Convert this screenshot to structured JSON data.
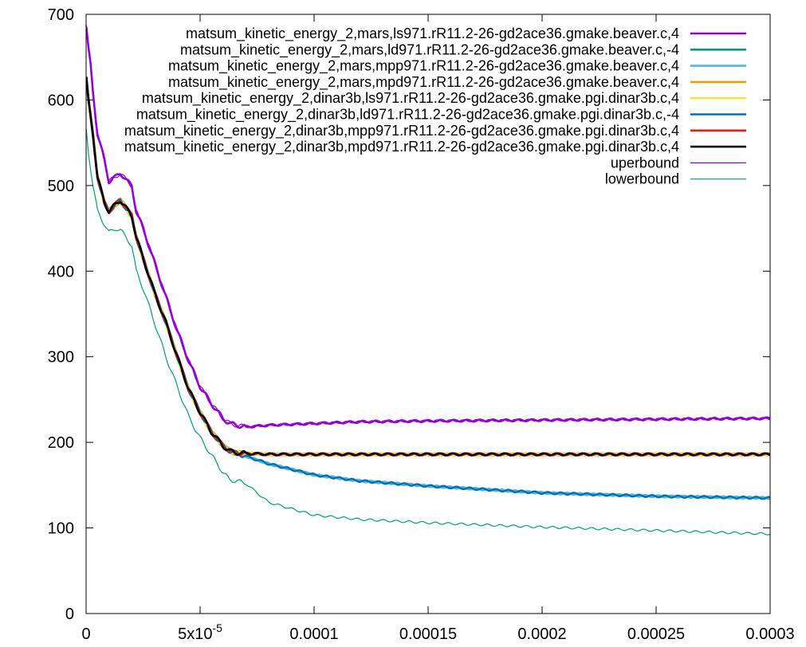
{
  "chart_data": {
    "type": "line",
    "xlim": [
      0,
      0.0003
    ],
    "ylim": [
      0,
      700
    ],
    "x_ticks": [
      {
        "value": 0,
        "label": "0"
      },
      {
        "value": 5e-05,
        "label": "5x10",
        "sup": "-5"
      },
      {
        "value": 0.0001,
        "label": "0.0001"
      },
      {
        "value": 0.00015,
        "label": "0.00015"
      },
      {
        "value": 0.0002,
        "label": "0.0002"
      },
      {
        "value": 0.00025,
        "label": "0.00025"
      },
      {
        "value": 0.0003,
        "label": "0.0003"
      }
    ],
    "y_ticks": [
      {
        "value": 0,
        "label": "0"
      },
      {
        "value": 100,
        "label": "100"
      },
      {
        "value": 200,
        "label": "200"
      },
      {
        "value": 300,
        "label": "300"
      },
      {
        "value": 400,
        "label": "400"
      },
      {
        "value": 500,
        "label": "500"
      },
      {
        "value": 600,
        "label": "600"
      },
      {
        "value": 700,
        "label": "700"
      }
    ],
    "grid": false,
    "legend_position": "top-right",
    "series": [
      {
        "name": "matsum_kinetic_energy_2,mars,ls971.rR11.2-26-gd2ace36.gmake.beaver.c,4",
        "color": "#9400d3",
        "width": "thick",
        "x": [
          1e-07,
          1e-06,
          2e-06,
          3e-06,
          5e-06,
          8e-06,
          1e-05,
          1.3e-05,
          1.5e-05,
          1.8e-05,
          2e-05,
          2.2e-05,
          2.5e-05,
          3e-05,
          3.5e-05,
          4e-05,
          4.5e-05,
          5e-05,
          5.5e-05,
          6e-05,
          6.3e-05,
          6.6e-05,
          7e-05,
          7.5e-05,
          8e-05,
          0.0001,
          0.00012,
          0.00015,
          0.0002,
          0.00025,
          0.0003
        ],
        "y": [
          685,
          660,
          640,
          610,
          560,
          530,
          505,
          510,
          515,
          505,
          500,
          470,
          450,
          410,
          370,
          330,
          295,
          265,
          245,
          228,
          222,
          220,
          218,
          219,
          220,
          222,
          224,
          225,
          226,
          227,
          228
        ]
      },
      {
        "name": "matsum_kinetic_energy_2,mars,ld971.rR11.2-26-gd2ace36.gmake.beaver.c,-4",
        "color": "#009e73",
        "width": "thick",
        "x": [
          1e-07,
          1e-06,
          3e-06,
          5e-06,
          8e-06,
          1e-05,
          1.3e-05,
          1.5e-05,
          1.8e-05,
          2e-05,
          2.2e-05,
          2.5e-05,
          3e-05,
          3.5e-05,
          4e-05,
          4.5e-05,
          5e-05,
          5.5e-05,
          6e-05,
          6.3e-05,
          6.5e-05,
          7e-05,
          8e-05,
          0.0001,
          0.00015,
          0.0002,
          0.00025,
          0.0003
        ],
        "y": [
          625,
          600,
          560,
          510,
          480,
          470,
          478,
          483,
          472,
          465,
          440,
          415,
          375,
          340,
          300,
          262,
          235,
          212,
          196,
          190,
          188,
          187,
          186,
          186,
          186,
          186,
          186,
          186
        ]
      },
      {
        "name": "matsum_kinetic_energy_2,mars,mpp971.rR11.2-26-gd2ace36.gmake.beaver.c,4",
        "color": "#56b4e9",
        "width": "thick",
        "x": [
          1e-07,
          1e-06,
          3e-06,
          5e-06,
          8e-06,
          1e-05,
          1.3e-05,
          1.5e-05,
          1.8e-05,
          2e-05,
          2.2e-05,
          2.5e-05,
          3e-05,
          3.5e-05,
          4e-05,
          4.5e-05,
          5e-05,
          5.5e-05,
          6e-05,
          6.3e-05,
          6.5e-05,
          7e-05,
          8e-05,
          0.0001,
          0.00012,
          0.00015,
          0.0002,
          0.00025,
          0.0003
        ],
        "y": [
          625,
          600,
          560,
          510,
          480,
          470,
          478,
          483,
          472,
          465,
          440,
          415,
          375,
          340,
          300,
          262,
          235,
          212,
          196,
          190,
          188,
          184,
          175,
          162,
          155,
          149,
          141,
          137,
          135
        ]
      },
      {
        "name": "matsum_kinetic_energy_2,mars,mpd971.rR11.2-26-gd2ace36.gmake.beaver.c,4",
        "color": "#e69f00",
        "width": "thick",
        "x": [
          1e-07,
          1e-06,
          3e-06,
          5e-06,
          8e-06,
          1e-05,
          1.3e-05,
          1.5e-05,
          1.8e-05,
          2e-05,
          2.2e-05,
          2.5e-05,
          3e-05,
          3.5e-05,
          4e-05,
          4.5e-05,
          5e-05,
          5.5e-05,
          6e-05,
          6.3e-05,
          6.5e-05,
          7e-05,
          8e-05,
          0.0001,
          0.00015,
          0.0002,
          0.00025,
          0.0003
        ],
        "y": [
          625,
          600,
          560,
          510,
          480,
          470,
          478,
          483,
          472,
          465,
          440,
          415,
          375,
          340,
          300,
          262,
          235,
          212,
          196,
          190,
          188,
          187,
          186,
          186,
          186,
          186,
          186,
          186
        ]
      },
      {
        "name": "matsum_kinetic_energy_2,dinar3b,ls971.rR11.2-26-gd2ace36.gmake.pgi.dinar3b.c,4",
        "color": "#f0e442",
        "width": "thick",
        "x": [
          1e-07,
          1e-06,
          3e-06,
          5e-06,
          8e-06,
          1e-05,
          1.3e-05,
          1.5e-05,
          1.8e-05,
          2e-05,
          2.2e-05,
          2.5e-05,
          3e-05,
          3.5e-05,
          4e-05,
          4.5e-05,
          5e-05,
          5.5e-05,
          6e-05,
          6.3e-05,
          6.5e-05,
          7e-05,
          8e-05,
          0.0001,
          0.00015,
          0.0002,
          0.00025,
          0.0003
        ],
        "y": [
          625,
          600,
          560,
          510,
          480,
          470,
          478,
          483,
          472,
          465,
          440,
          415,
          375,
          340,
          300,
          262,
          235,
          212,
          196,
          190,
          188,
          187,
          186,
          186,
          186,
          186,
          186,
          186
        ]
      },
      {
        "name": "matsum_kinetic_energy_2,dinar3b,ld971.rR11.2-26-gd2ace36.gmake.pgi.dinar3b.c,-4",
        "color": "#0072b2",
        "width": "thick",
        "x": [
          1e-07,
          1e-06,
          3e-06,
          5e-06,
          8e-06,
          1e-05,
          1.3e-05,
          1.5e-05,
          1.8e-05,
          2e-05,
          2.2e-05,
          2.5e-05,
          3e-05,
          3.5e-05,
          4e-05,
          4.5e-05,
          5e-05,
          5.5e-05,
          6e-05,
          6.3e-05,
          6.5e-05,
          7e-05,
          8e-05,
          0.0001,
          0.00012,
          0.00015,
          0.0002,
          0.00025,
          0.0003
        ],
        "y": [
          625,
          600,
          560,
          510,
          480,
          470,
          478,
          483,
          472,
          465,
          440,
          415,
          375,
          340,
          300,
          262,
          235,
          212,
          196,
          190,
          188,
          184,
          175,
          162,
          155,
          149,
          141,
          137,
          135
        ]
      },
      {
        "name": "matsum_kinetic_energy_2,dinar3b,mpp971.rR11.2-26-gd2ace36.gmake.pgi.dinar3b.c,4",
        "color": "#e51e10",
        "width": "thick",
        "x": [
          1e-07,
          1e-06,
          3e-06,
          5e-06,
          8e-06,
          1e-05,
          1.3e-05,
          1.5e-05,
          1.8e-05,
          2e-05,
          2.2e-05,
          2.5e-05,
          3e-05,
          3.5e-05,
          4e-05,
          4.5e-05,
          5e-05,
          5.5e-05,
          6e-05,
          6.3e-05,
          6.5e-05,
          7e-05,
          8e-05,
          0.0001,
          0.00015,
          0.0002,
          0.00025,
          0.0003
        ],
        "y": [
          625,
          600,
          560,
          510,
          480,
          470,
          478,
          483,
          472,
          465,
          440,
          415,
          375,
          340,
          300,
          262,
          235,
          212,
          196,
          190,
          188,
          187,
          186,
          186,
          186,
          186,
          186,
          186
        ]
      },
      {
        "name": "matsum_kinetic_energy_2,dinar3b,mpd971.rR11.2-26-gd2ace36.gmake.pgi.dinar3b.c,4",
        "color": "#000000",
        "width": "thick",
        "x": [
          1e-07,
          1e-06,
          3e-06,
          5e-06,
          8e-06,
          1e-05,
          1.3e-05,
          1.5e-05,
          1.8e-05,
          2e-05,
          2.2e-05,
          2.5e-05,
          3e-05,
          3.5e-05,
          4e-05,
          4.5e-05,
          5e-05,
          5.5e-05,
          6e-05,
          6.3e-05,
          6.5e-05,
          7e-05,
          8e-05,
          0.0001,
          0.00015,
          0.0002,
          0.00025,
          0.0003
        ],
        "y": [
          625,
          600,
          560,
          510,
          480,
          470,
          478,
          483,
          472,
          465,
          440,
          415,
          375,
          340,
          300,
          262,
          235,
          212,
          196,
          190,
          188,
          187,
          186,
          186,
          186,
          186,
          186,
          186
        ]
      },
      {
        "name": "uperbound",
        "color": "#9400d3",
        "width": "thin",
        "x": [
          1e-07,
          1e-06,
          2e-06,
          3e-06,
          5e-06,
          8e-06,
          1e-05,
          1.3e-05,
          1.5e-05,
          1.8e-05,
          2e-05,
          2.2e-05,
          2.5e-05,
          3e-05,
          3.5e-05,
          4e-05,
          4.5e-05,
          5e-05,
          5.5e-05,
          6e-05,
          6.3e-05,
          6.6e-05,
          7e-05,
          7.5e-05,
          8e-05,
          0.0001,
          0.00012,
          0.00015,
          0.0002,
          0.00025,
          0.0003
        ],
        "y": [
          685,
          660,
          640,
          610,
          560,
          530,
          505,
          510,
          515,
          505,
          500,
          470,
          450,
          410,
          370,
          330,
          295,
          265,
          245,
          228,
          222,
          220,
          218,
          219,
          220,
          222,
          224,
          225,
          226,
          227,
          228
        ]
      },
      {
        "name": "lowerbound",
        "color": "#009e73",
        "width": "thin",
        "x": [
          1e-07,
          1e-06,
          3e-06,
          5e-06,
          8e-06,
          1e-05,
          1.3e-05,
          1.5e-05,
          1.8e-05,
          2e-05,
          2.2e-05,
          2.5e-05,
          3e-05,
          3.5e-05,
          4e-05,
          4.5e-05,
          5e-05,
          5.5e-05,
          6e-05,
          6.3e-05,
          6.6e-05,
          7e-05,
          8e-05,
          0.0001,
          0.00012,
          0.00015,
          0.0002,
          0.00025,
          0.0003
        ],
        "y": [
          565,
          540,
          500,
          470,
          455,
          445,
          450,
          448,
          438,
          430,
          400,
          380,
          340,
          300,
          265,
          230,
          205,
          185,
          165,
          156,
          155,
          152,
          130,
          115,
          110,
          106,
          101,
          97,
          93
        ]
      }
    ]
  }
}
